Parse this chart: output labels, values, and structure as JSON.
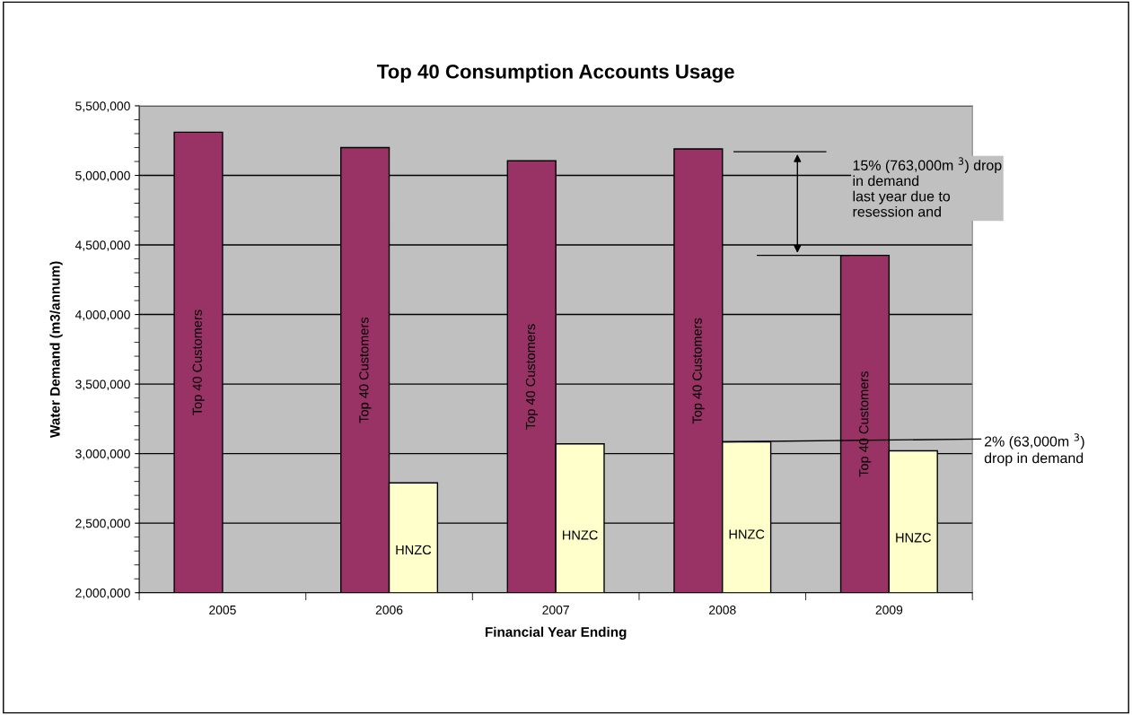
{
  "chart_data": {
    "type": "bar",
    "title": "Top 40 Consumption Accounts Usage",
    "xlabel": "Financial Year Ending",
    "ylabel": "Water Demand (m3/annum)",
    "categories": [
      "2005",
      "2006",
      "2007",
      "2008",
      "2009"
    ],
    "series": [
      {
        "name": "Top 40 Customers",
        "color": "#993366",
        "values": [
          5310000,
          5200000,
          5105000,
          5190000,
          4425000
        ]
      },
      {
        "name": "HNZC",
        "color": "#ffffcc",
        "values": [
          null,
          2790000,
          3070000,
          3085000,
          3020000
        ]
      }
    ],
    "ylim": [
      2000000,
      5500000
    ],
    "yticks": [
      {
        "value": 2000000,
        "label": "2,000,000"
      },
      {
        "value": 2500000,
        "label": "2,500,000"
      },
      {
        "value": 3000000,
        "label": "3,000,000"
      },
      {
        "value": 3500000,
        "label": "3,500,000"
      },
      {
        "value": 4000000,
        "label": "4,000,000"
      },
      {
        "value": 4500000,
        "label": "4,500,000"
      },
      {
        "value": 5000000,
        "label": "5,000,000"
      },
      {
        "value": 5500000,
        "label": "5,500,000"
      }
    ],
    "grid": "y",
    "legend": false,
    "annotations": [
      "15% (763,000m $^{3}$) drop\nin demand\nlast year due to\nresession and",
      {
        "text": "2% (63,000m $^{3}$)\ndrop in demand",
        "x": "2008",
        "y": 3085000
      }
    ]
  }
}
